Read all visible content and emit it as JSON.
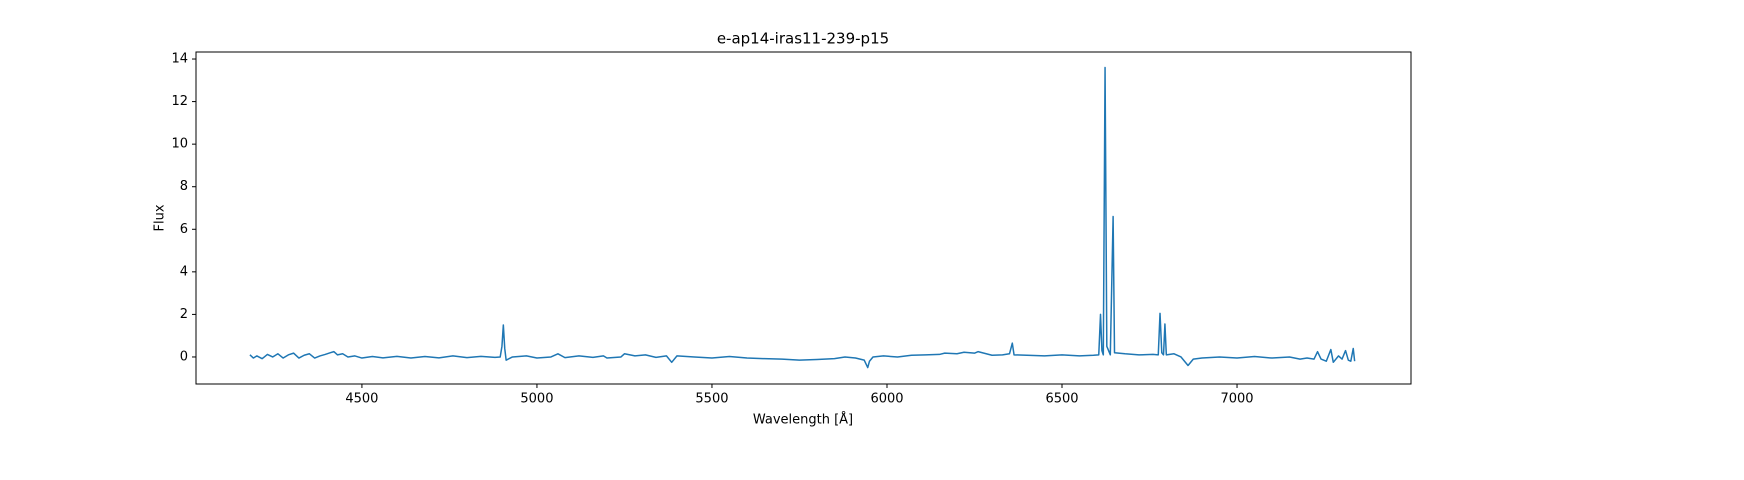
{
  "chart_data": {
    "type": "line",
    "title": "e-ap14-iras11-239-p15",
    "x_label": "Wavelength [Å]",
    "y_label": "Flux",
    "xlim": [
      4026,
      7497
    ],
    "ylim": [
      -1.27,
      14.33
    ],
    "xticks": [
      4500,
      5000,
      5500,
      6000,
      6500,
      7000
    ],
    "yticks": [
      0,
      2,
      4,
      6,
      8,
      10,
      12,
      14
    ],
    "x": [
      4180,
      4190,
      4200,
      4215,
      4230,
      4245,
      4260,
      4275,
      4290,
      4305,
      4320,
      4335,
      4350,
      4365,
      4380,
      4395,
      4410,
      4420,
      4430,
      4445,
      4460,
      4480,
      4500,
      4530,
      4560,
      4600,
      4640,
      4680,
      4720,
      4760,
      4800,
      4840,
      4880,
      4895,
      4900,
      4904,
      4908,
      4912,
      4930,
      4970,
      5000,
      5040,
      5060,
      5080,
      5120,
      5160,
      5190,
      5200,
      5240,
      5250,
      5280,
      5310,
      5340,
      5370,
      5385,
      5400,
      5450,
      5500,
      5550,
      5600,
      5650,
      5700,
      5750,
      5800,
      5850,
      5880,
      5910,
      5935,
      5945,
      5950,
      5960,
      5990,
      6030,
      6070,
      6110,
      6150,
      6165,
      6200,
      6220,
      6250,
      6260,
      6300,
      6330,
      6350,
      6358,
      6363,
      6400,
      6450,
      6500,
      6550,
      6590,
      6605,
      6610,
      6614,
      6618,
      6623,
      6628,
      6638,
      6646,
      6650,
      6680,
      6720,
      6760,
      6775,
      6780,
      6785,
      6790,
      6794,
      6798,
      6820,
      6840,
      6860,
      6875,
      6900,
      6950,
      7000,
      7050,
      7100,
      7150,
      7180,
      7200,
      7220,
      7230,
      7240,
      7255,
      7268,
      7275,
      7290,
      7300,
      7310,
      7318,
      7325,
      7332,
      7336
    ],
    "series": [
      {
        "color": "#1f77b4",
        "values": [
          0.1,
          -0.05,
          0.05,
          -0.08,
          0.12,
          0.0,
          0.15,
          -0.05,
          0.1,
          0.18,
          -0.05,
          0.08,
          0.15,
          -0.05,
          0.05,
          0.12,
          0.2,
          0.25,
          0.1,
          0.15,
          0.0,
          0.05,
          -0.05,
          0.02,
          -0.04,
          0.03,
          -0.05,
          0.02,
          -0.04,
          0.05,
          -0.03,
          0.03,
          -0.02,
          0.0,
          0.5,
          1.5,
          0.4,
          -0.15,
          0.0,
          0.05,
          -0.05,
          0.0,
          0.15,
          -0.03,
          0.05,
          -0.02,
          0.05,
          -0.05,
          0.0,
          0.15,
          0.05,
          0.1,
          -0.02,
          0.05,
          -0.25,
          0.05,
          0.0,
          -0.05,
          0.02,
          -0.05,
          -0.08,
          -0.1,
          -0.15,
          -0.12,
          -0.08,
          0.0,
          -0.05,
          -0.15,
          -0.5,
          -0.2,
          0.0,
          0.05,
          0.0,
          0.08,
          0.1,
          0.12,
          0.18,
          0.15,
          0.22,
          0.18,
          0.25,
          0.08,
          0.1,
          0.15,
          0.65,
          0.1,
          0.08,
          0.05,
          0.1,
          0.05,
          0.08,
          0.1,
          2.0,
          0.3,
          0.1,
          13.6,
          0.5,
          0.1,
          6.6,
          0.2,
          0.15,
          0.1,
          0.12,
          0.1,
          2.05,
          0.2,
          0.1,
          1.55,
          0.1,
          0.15,
          0.0,
          -0.4,
          -0.1,
          -0.05,
          0.0,
          -0.05,
          0.02,
          -0.05,
          0.0,
          -0.1,
          -0.05,
          -0.1,
          0.25,
          -0.1,
          -0.2,
          0.35,
          -0.25,
          0.05,
          -0.1,
          0.3,
          -0.15,
          -0.2,
          0.4,
          -0.2
        ]
      }
    ]
  }
}
